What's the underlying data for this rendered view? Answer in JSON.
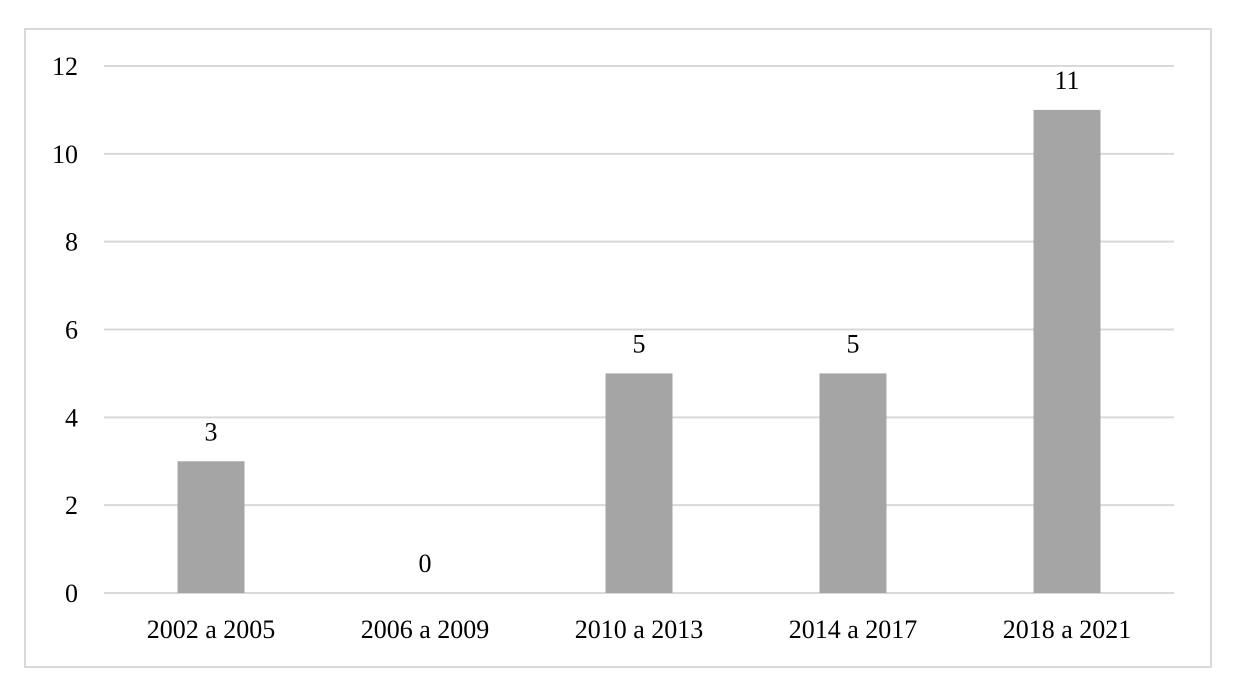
{
  "chart_data": {
    "type": "bar",
    "categories": [
      "2002 a 2005",
      "2006 a 2009",
      "2010 a 2013",
      "2014 a 2017",
      "2018 a 2021"
    ],
    "values": [
      3,
      0,
      5,
      5,
      11
    ],
    "data_labels": [
      "3",
      "0",
      "5",
      "5",
      "11"
    ],
    "title": "",
    "xlabel": "",
    "ylabel": "",
    "ylim": [
      0,
      12
    ],
    "yticks": [
      0,
      2,
      4,
      6,
      8,
      10,
      12
    ],
    "grid": true,
    "legend": "none",
    "bar_color": "#a5a5a5",
    "grid_color": "#d9d9d9"
  }
}
